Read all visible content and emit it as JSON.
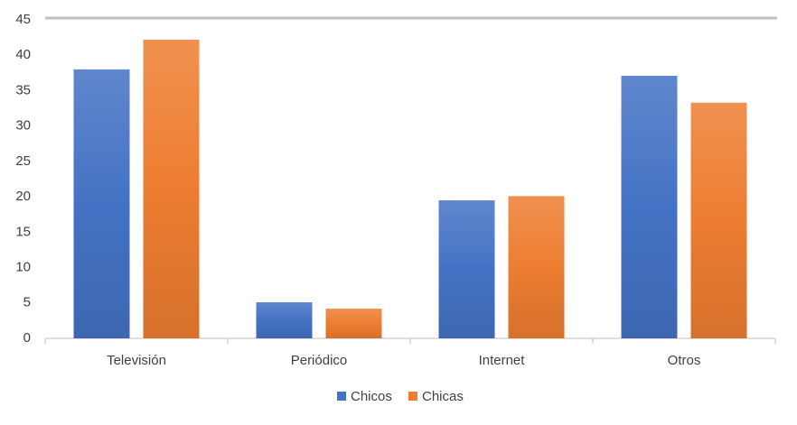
{
  "chart_data": {
    "type": "bar",
    "categories": [
      "Televisión",
      "Periódico",
      "Internet",
      "Otros"
    ],
    "series": [
      {
        "name": "Chicos",
        "color": "#4472c4",
        "values": [
          38,
          5.1,
          19.5,
          37.1
        ]
      },
      {
        "name": "Chicas",
        "color": "#ed7d31",
        "values": [
          42.2,
          4.2,
          20.1,
          33.3
        ]
      }
    ],
    "ylim": [
      0,
      45
    ],
    "yticks": [
      0,
      5,
      10,
      15,
      20,
      25,
      30,
      35,
      40,
      45
    ],
    "legend": "bottom"
  }
}
